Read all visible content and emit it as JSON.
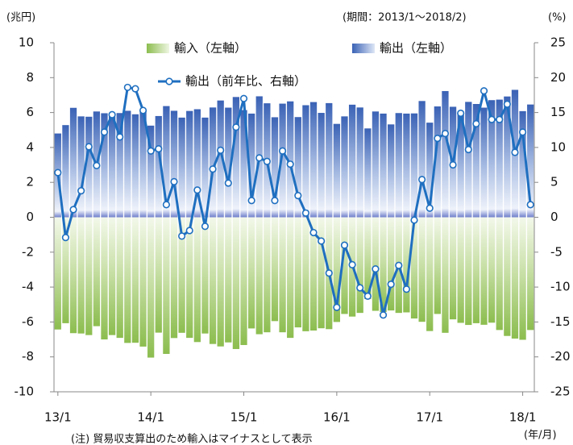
{
  "chart_data": {
    "type": "bar",
    "y_unit": "(兆円)",
    "period": "(期間：2013/1～2018/2)",
    "y2_unit": "(%)",
    "x_unit": "(年/月)",
    "note": "(注) 貿易収支算出のため輸入はマイナスとして表示",
    "categories": [
      "13/1",
      null,
      null,
      null,
      null,
      null,
      null,
      null,
      null,
      null,
      null,
      null,
      "14/1",
      null,
      null,
      null,
      null,
      null,
      null,
      null,
      null,
      null,
      null,
      null,
      "15/1",
      null,
      null,
      null,
      null,
      null,
      null,
      null,
      null,
      null,
      null,
      null,
      "16/1",
      null,
      null,
      null,
      null,
      null,
      null,
      null,
      null,
      null,
      null,
      null,
      "17/1",
      null,
      null,
      null,
      null,
      null,
      null,
      null,
      null,
      null,
      null,
      null,
      "18/1",
      null
    ],
    "ylim": [
      -10,
      10
    ],
    "yticks": [
      -10,
      -8,
      -6,
      -4,
      -2,
      0,
      2,
      4,
      6,
      8,
      10
    ],
    "y2lim": [
      -25,
      25
    ],
    "y2ticks": [
      -25,
      -20,
      -15,
      -10,
      -5,
      0,
      5,
      10,
      15,
      20,
      25
    ],
    "grid": false,
    "series": [
      {
        "name": "輸入（左軸）",
        "color": "#8cbd4f",
        "values": [
          -6.43,
          -6.07,
          -6.64,
          -6.66,
          -6.75,
          -6.24,
          -7.0,
          -6.75,
          -6.91,
          -7.2,
          -7.19,
          -7.41,
          -8.04,
          -6.61,
          -7.83,
          -6.92,
          -6.62,
          -6.91,
          -7.15,
          -6.66,
          -7.26,
          -7.4,
          -7.17,
          -7.55,
          -7.32,
          -6.37,
          -6.7,
          -6.59,
          -5.95,
          -6.59,
          -6.91,
          -6.31,
          -6.53,
          -6.49,
          -6.36,
          -6.41,
          -6.0,
          -5.54,
          -5.69,
          -5.48,
          -4.69,
          -5.36,
          -5.43,
          -5.34,
          -5.48,
          -5.45,
          -5.8,
          -5.99,
          -6.52,
          -5.54,
          -6.62,
          -5.85,
          -6.05,
          -6.17,
          -6.07,
          -6.16,
          -6.04,
          -6.46,
          -6.8,
          -6.95,
          -7.02,
          -6.46
        ]
      },
      {
        "name": "輸出（左軸）",
        "color": "#3a62b5",
        "values": [
          4.8,
          5.28,
          6.27,
          5.78,
          5.76,
          6.06,
          5.96,
          5.78,
          5.97,
          6.1,
          5.9,
          6.11,
          5.25,
          5.8,
          6.37,
          6.1,
          5.71,
          6.09,
          6.19,
          5.71,
          6.29,
          6.69,
          6.28,
          6.89,
          6.14,
          5.94,
          6.93,
          6.53,
          5.73,
          6.51,
          6.64,
          5.74,
          6.42,
          6.6,
          5.98,
          6.54,
          5.35,
          5.78,
          6.45,
          6.29,
          5.09,
          6.06,
          5.94,
          5.32,
          5.97,
          5.94,
          5.95,
          6.66,
          5.42,
          6.35,
          7.23,
          6.33,
          5.85,
          6.61,
          6.49,
          6.28,
          6.71,
          6.74,
          6.92,
          7.3,
          6.08,
          6.46
        ]
      },
      {
        "name": "輸出（前年比、右軸）",
        "color": "#1f6fc0",
        "type": "line",
        "axis": "y2",
        "values": [
          6.4,
          -2.9,
          1.1,
          3.8,
          10.1,
          7.4,
          12.2,
          14.7,
          11.5,
          18.6,
          18.4,
          15.3,
          9.5,
          9.8,
          1.8,
          5.1,
          -2.7,
          -1.9,
          3.9,
          -1.3,
          6.9,
          9.6,
          4.9,
          12.9,
          17.0,
          2.4,
          8.5,
          8.0,
          2.4,
          9.5,
          7.6,
          3.1,
          0.6,
          -2.2,
          -3.4,
          -8.0,
          -12.9,
          -4.0,
          -6.8,
          -10.1,
          -11.3,
          -7.4,
          -14.0,
          -9.6,
          -6.9,
          -10.3,
          -0.4,
          5.4,
          1.3,
          11.3,
          12.0,
          7.5,
          14.9,
          9.7,
          13.4,
          18.1,
          14.0,
          14.0,
          16.2,
          9.3,
          12.2,
          1.8
        ]
      }
    ]
  }
}
